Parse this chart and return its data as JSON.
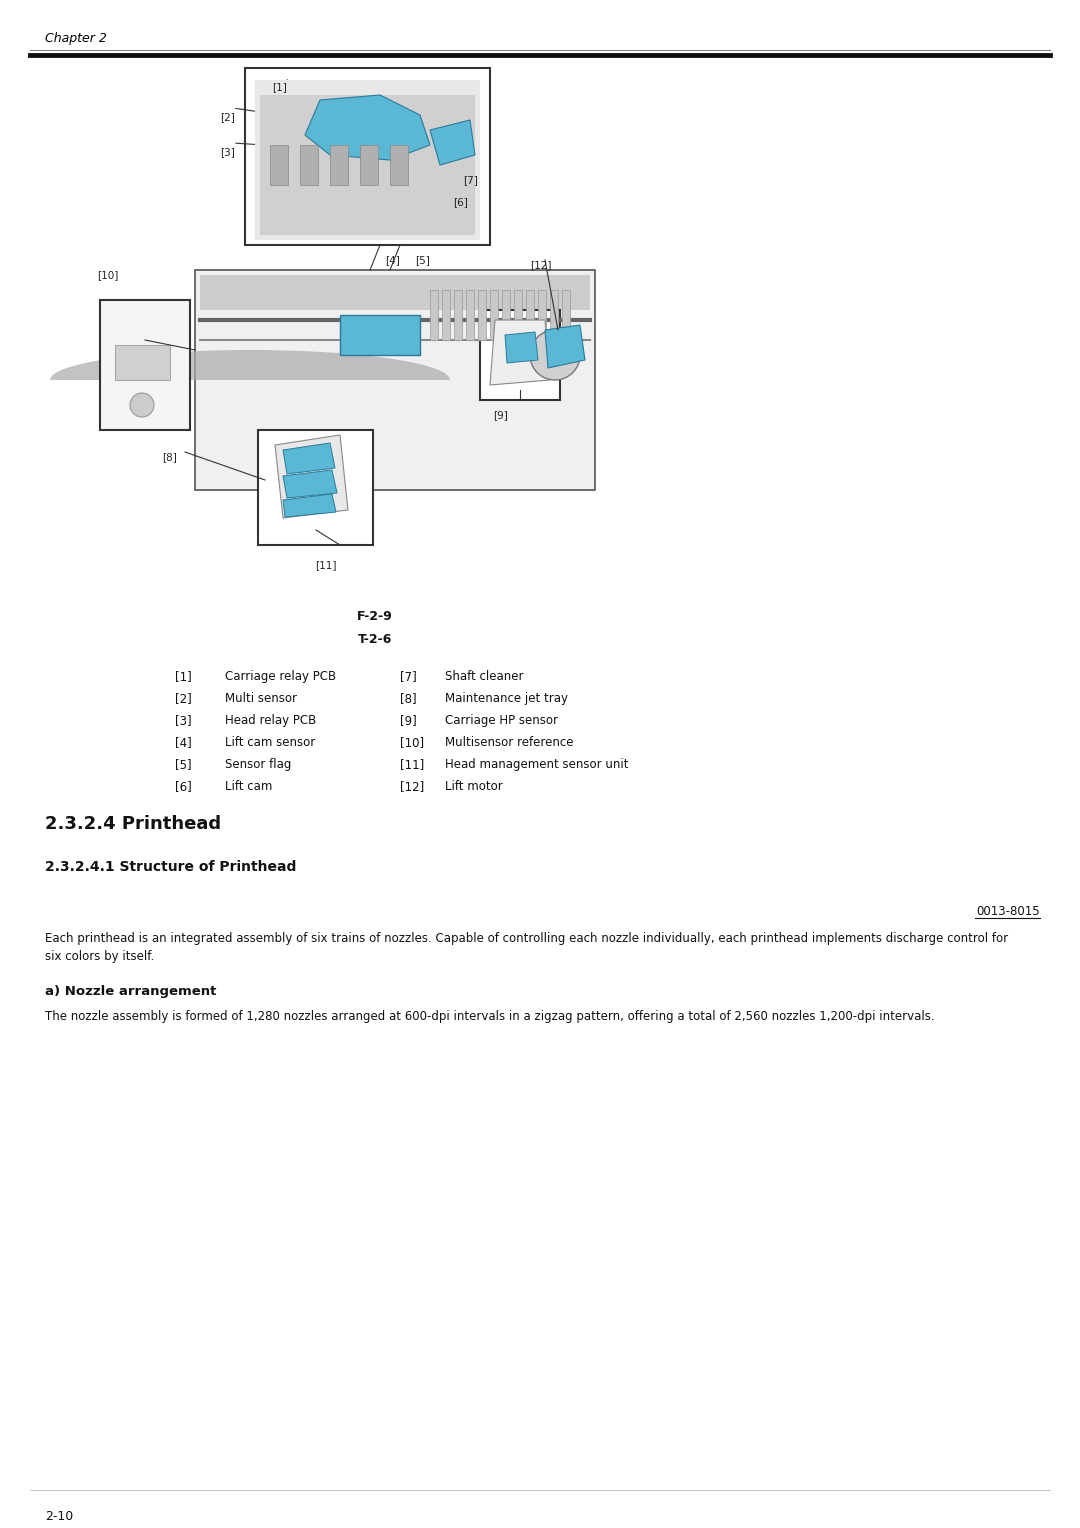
{
  "page_header": "Chapter 2",
  "figure_label": "F-2-9",
  "table_label": "T-2-6",
  "legend_left": [
    {
      "num": "[1]",
      "desc": "Carriage relay PCB"
    },
    {
      "num": "[2]",
      "desc": "Multi sensor"
    },
    {
      "num": "[3]",
      "desc": "Head relay PCB"
    },
    {
      "num": "[4]",
      "desc": "Lift cam sensor"
    },
    {
      "num": "[5]",
      "desc": "Sensor flag"
    },
    {
      "num": "[6]",
      "desc": "Lift cam"
    }
  ],
  "legend_right": [
    {
      "num": "[7]",
      "desc": "Shaft cleaner"
    },
    {
      "num": "[8]",
      "desc": "Maintenance jet tray"
    },
    {
      "num": "[9]",
      "desc": "Carriage HP sensor"
    },
    {
      "num": "[10]",
      "desc": "Multisensor reference"
    },
    {
      "num": "[11]",
      "desc": "Head management sensor unit"
    },
    {
      "num": "[12]",
      "desc": "Lift motor"
    }
  ],
  "section_title": "2.3.2.4 Printhead",
  "subsection_title": "2.3.2.4.1 Structure of Printhead",
  "code_ref": "0013-8015",
  "body_text_line1": "Each printhead is an integrated assembly of six trains of nozzles. Capable of controlling each nozzle individually, each printhead implements discharge control for",
  "body_text_line2": "six colors by itself.",
  "subsection2_title": "a) Nozzle arrangement",
  "body_text2": "The nozzle assembly is formed of 1,280 nozzles arranged at 600-dpi intervals in a zigzag pattern, offering a total of 2,560 nozzles 1,200-dpi intervals.",
  "footer_text": "2-10",
  "bg_color": "#ffffff",
  "text_color": "#000000",
  "blue_color": "#5bb8d4",
  "blue_edge": "#2a7a9a"
}
